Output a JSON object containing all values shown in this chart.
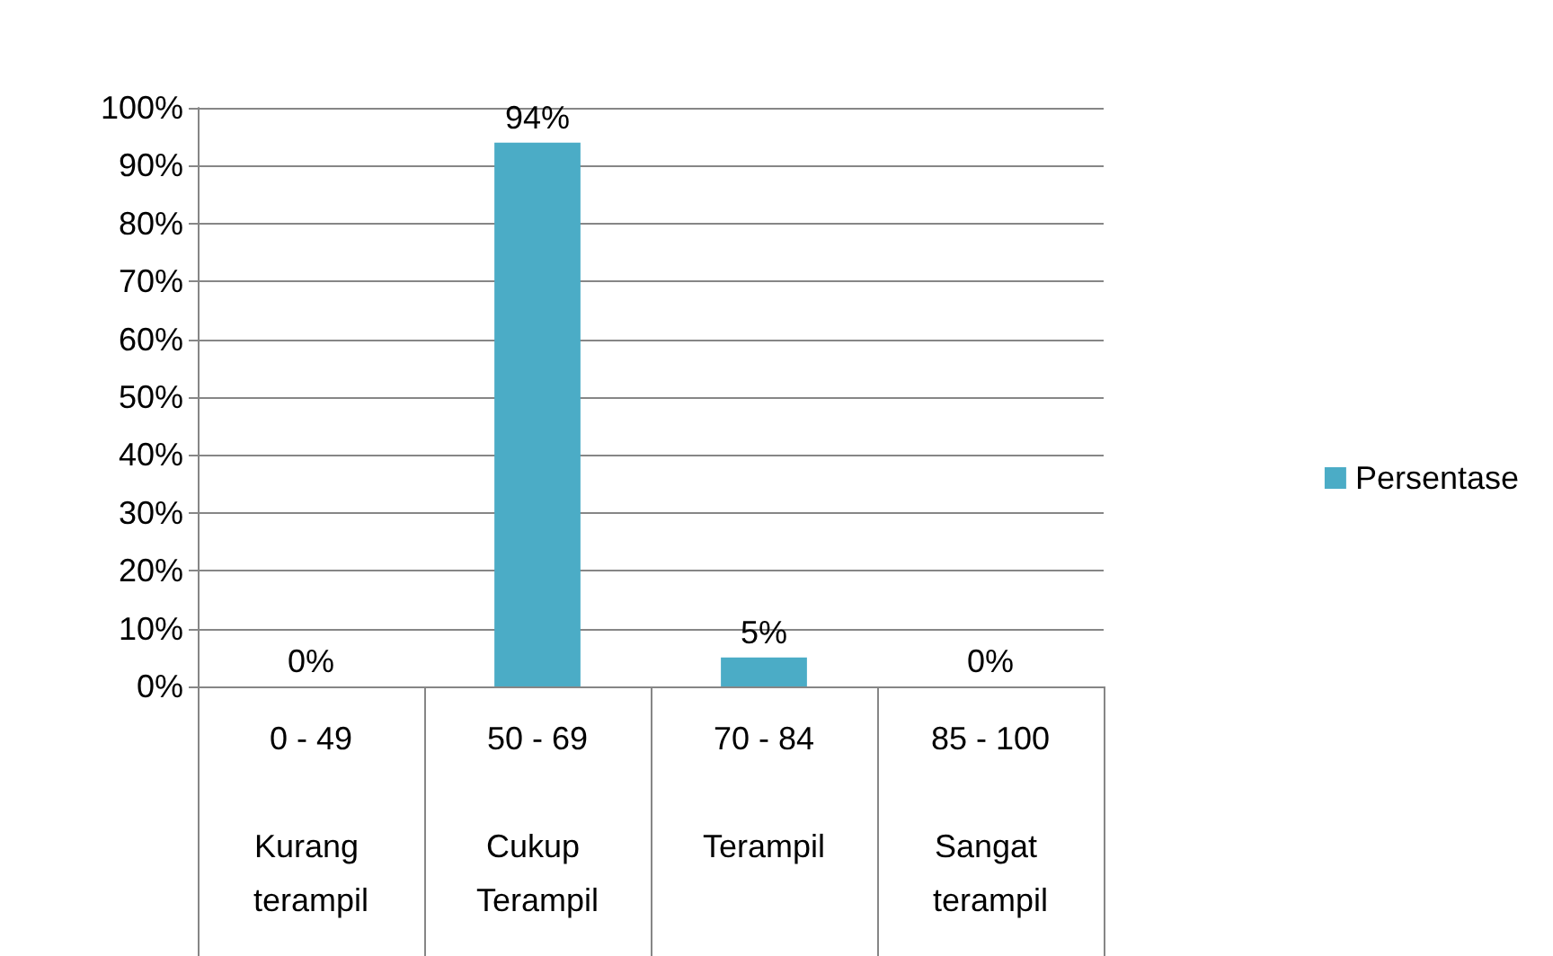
{
  "chart_data": {
    "type": "bar",
    "categories": [
      "0 - 49\nKurang terampil",
      "50 - 69\nCukup Terampil",
      "70 - 84\nTerampil",
      "85 - 100\nSangat terampil"
    ],
    "series": [
      {
        "name": "Persentase",
        "color": "#4bacc6",
        "values": [
          0,
          94,
          5,
          0
        ],
        "value_labels": [
          "0%",
          "94%",
          "5%",
          "0%"
        ]
      }
    ],
    "ylim": [
      0,
      100
    ],
    "yticks": [
      {
        "value": 0,
        "label": "0%"
      },
      {
        "value": 10,
        "label": "10%"
      },
      {
        "value": 20,
        "label": "20%"
      },
      {
        "value": 30,
        "label": "30%"
      },
      {
        "value": 40,
        "label": "40%"
      },
      {
        "value": 50,
        "label": "50%"
      },
      {
        "value": 60,
        "label": "60%"
      },
      {
        "value": 70,
        "label": "70%"
      },
      {
        "value": 80,
        "label": "80%"
      },
      {
        "value": 90,
        "label": "90%"
      },
      {
        "value": 100,
        "label": "100%"
      }
    ],
    "grid": "y",
    "legend": "right"
  }
}
